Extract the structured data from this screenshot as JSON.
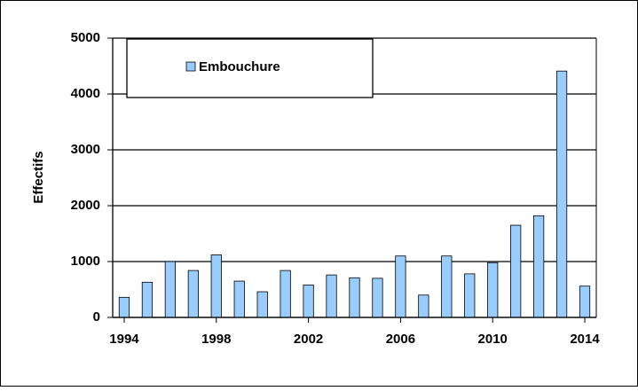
{
  "chart_data": {
    "type": "bar",
    "y_label": "Effectifs",
    "x": [
      1994,
      1995,
      1996,
      1997,
      1998,
      1999,
      2000,
      2001,
      2002,
      2003,
      2004,
      2005,
      2006,
      2007,
      2008,
      2009,
      2010,
      2011,
      2012,
      2013,
      2014
    ],
    "series": [
      {
        "name": "Embouchure",
        "color": "#99ccff",
        "values": [
          360,
          630,
          1000,
          840,
          1120,
          650,
          460,
          840,
          580,
          760,
          710,
          700,
          1100,
          400,
          1100,
          780,
          980,
          1650,
          1820,
          4410,
          560
        ]
      }
    ],
    "xlim": [
      1993.5,
      2014.5
    ],
    "xticks": [
      1994,
      1998,
      2002,
      2006,
      2010,
      2014
    ],
    "ylim": [
      0,
      5000
    ],
    "yticks": [
      0,
      1000,
      2000,
      3000,
      4000,
      5000
    ],
    "grid": true,
    "legend": "top-left"
  }
}
